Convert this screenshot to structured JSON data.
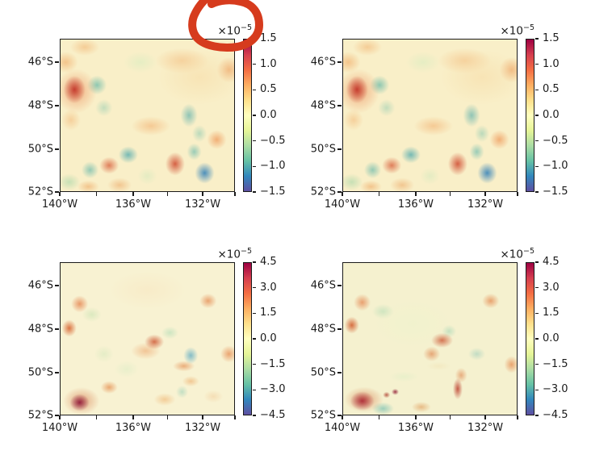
{
  "figure": {
    "background": "#ffffff",
    "text_color": "#1a1a1a"
  },
  "annotation": {
    "name": "red-circle-scribble",
    "description": "hand-drawn red circle around the top-left panel scale label",
    "color": "#d63b1d",
    "stroke_width": 10
  },
  "chart_data": {
    "type": "heatmap",
    "grid": "2x2",
    "colormap": "Spectral_r",
    "colormap_stops": [
      "#9e0142",
      "#d53e4f",
      "#f46d43",
      "#fdae61",
      "#fee08b",
      "#ffffbf",
      "#e6f598",
      "#abdda4",
      "#66c2a5",
      "#3288bd",
      "#5e4fa2"
    ],
    "x_axis": {
      "tick_labels": [
        "140°W",
        "136°W",
        "132°W"
      ],
      "tick_pos": [
        0,
        41.9,
        81.6
      ],
      "minor_tick_pos": [
        20.9,
        61.7,
        100
      ]
    },
    "y_axis": {
      "tick_labels": [
        "46°S",
        "48°S",
        "50°S",
        "52°S"
      ],
      "tick_pos": [
        15.3,
        43.7,
        72.1,
        100
      ]
    },
    "scale_label": {
      "mantissa": "×10",
      "exponent": "−5"
    },
    "panels": [
      {
        "id": "top-left",
        "colorbar": {
          "ticks": [
            "1.5",
            "1.0",
            "0.5",
            "0.0",
            "−0.5",
            "−1.0",
            "−1.5"
          ],
          "vmax": 1.5e-05,
          "vmin": -1.5e-05
        },
        "field": {
          "base": "#f9efc8",
          "blobs": [
            [
              80,
              25,
              34,
              26,
              "#f6dba6",
              0.55
            ],
            [
              8,
              33,
              9,
              13,
              "#c13227",
              0.9
            ],
            [
              9,
              34,
              17,
              21,
              "#e8703a",
              0.5
            ],
            [
              3,
              15,
              10,
              10,
              "#ee9a4e",
              0.5
            ],
            [
              14,
              5,
              12,
              8,
              "#efa258",
              0.45
            ],
            [
              21,
              30,
              8,
              9,
              "#55b2a4",
              0.65
            ],
            [
              25,
              45,
              7,
              8,
              "#8ecbb0",
              0.5
            ],
            [
              46,
              15,
              14,
              10,
              "#d9ecc0",
              0.6
            ],
            [
              70,
              14,
              22,
              12,
              "#f0a45c",
              0.4
            ],
            [
              97,
              20,
              10,
              12,
              "#ea8b44",
              0.55
            ],
            [
              74,
              50,
              7,
              11,
              "#49a8a8",
              0.6
            ],
            [
              80,
              62,
              6,
              8,
              "#7cc4ae",
              0.5
            ],
            [
              90,
              66,
              8,
              9,
              "#ec8540",
              0.6
            ],
            [
              52,
              57,
              16,
              9,
              "#f09c54",
              0.45
            ],
            [
              66,
              82,
              8,
              11,
              "#cc3e24",
              0.8
            ],
            [
              83,
              88,
              8,
              10,
              "#2f7fb8",
              0.85
            ],
            [
              77,
              74,
              6,
              8,
              "#5ab4ab",
              0.6
            ],
            [
              39,
              76,
              8,
              8,
              "#3fa3ab",
              0.7
            ],
            [
              28,
              83,
              8,
              8,
              "#d4502c",
              0.7
            ],
            [
              17,
              86,
              7,
              8,
              "#52b0a6",
              0.6
            ],
            [
              5,
              94,
              9,
              8,
              "#a6d6a8",
              0.6
            ],
            [
              16,
              97,
              9,
              6,
              "#eb9a50",
              0.5
            ],
            [
              34,
              96,
              10,
              7,
              "#e8944c",
              0.45
            ],
            [
              50,
              90,
              8,
              8,
              "#cfe8bc",
              0.5
            ],
            [
              6,
              53,
              8,
              10,
              "#f0a258",
              0.4
            ]
          ]
        }
      },
      {
        "id": "top-right",
        "colorbar": {
          "ticks": [
            "1.5",
            "1.0",
            "0.5",
            "0.0",
            "−0.5",
            "−1.0",
            "−1.5"
          ],
          "vmax": 1.5e-05,
          "vmin": -1.5e-05
        },
        "field": {
          "base": "#f9efc8",
          "blobs": [
            [
              80,
              25,
              34,
              26,
              "#f6dba6",
              0.55
            ],
            [
              8,
              33,
              9,
              13,
              "#c13227",
              0.9
            ],
            [
              9,
              34,
              17,
              21,
              "#e8703a",
              0.5
            ],
            [
              3,
              15,
              10,
              10,
              "#ee9a4e",
              0.5
            ],
            [
              14,
              5,
              12,
              8,
              "#efa258",
              0.45
            ],
            [
              21,
              30,
              8,
              9,
              "#55b2a4",
              0.65
            ],
            [
              25,
              45,
              7,
              8,
              "#8ecbb0",
              0.5
            ],
            [
              46,
              15,
              14,
              10,
              "#d9ecc0",
              0.6
            ],
            [
              70,
              14,
              22,
              12,
              "#f0a45c",
              0.4
            ],
            [
              97,
              20,
              10,
              12,
              "#ea8b44",
              0.55
            ],
            [
              74,
              50,
              7,
              11,
              "#49a8a8",
              0.6
            ],
            [
              80,
              62,
              6,
              8,
              "#7cc4ae",
              0.5
            ],
            [
              90,
              66,
              8,
              9,
              "#ec8540",
              0.6
            ],
            [
              52,
              57,
              16,
              9,
              "#f09c54",
              0.45
            ],
            [
              66,
              82,
              8,
              11,
              "#cc3e24",
              0.8
            ],
            [
              83,
              88,
              8,
              10,
              "#2f7fb8",
              0.85
            ],
            [
              77,
              74,
              6,
              8,
              "#5ab4ab",
              0.6
            ],
            [
              39,
              76,
              8,
              8,
              "#3fa3ab",
              0.7
            ],
            [
              28,
              83,
              8,
              8,
              "#d4502c",
              0.7
            ],
            [
              17,
              86,
              7,
              8,
              "#52b0a6",
              0.6
            ],
            [
              5,
              94,
              9,
              8,
              "#a6d6a8",
              0.6
            ],
            [
              16,
              97,
              9,
              6,
              "#eb9a50",
              0.5
            ],
            [
              34,
              96,
              10,
              7,
              "#e8944c",
              0.45
            ],
            [
              50,
              90,
              8,
              8,
              "#cfe8bc",
              0.5
            ],
            [
              6,
              53,
              8,
              10,
              "#f0a258",
              0.4
            ]
          ]
        }
      },
      {
        "id": "bottom-left",
        "colorbar": {
          "ticks": [
            "4.5",
            "3.0",
            "1.5",
            "0.0",
            "−1.5",
            "−3.0",
            "−4.5"
          ],
          "vmax": 4.5e-05,
          "vmin": -4.5e-05
        },
        "field": {
          "base": "#f8f2d2",
          "blobs": [
            [
              50,
              18,
              32,
              18,
              "#f8e6c0",
              0.55
            ],
            [
              11,
              27,
              7,
              8,
              "#e06a30",
              0.65
            ],
            [
              5,
              43,
              6,
              8,
              "#d4551f",
              0.8
            ],
            [
              85,
              25,
              7,
              7,
              "#e0702f",
              0.6
            ],
            [
              18,
              34,
              8,
              7,
              "#bfe0ac",
              0.5
            ],
            [
              54,
              52,
              8,
              7,
              "#c9441f",
              0.75
            ],
            [
              49,
              58,
              12,
              8,
              "#e8823d",
              0.4
            ],
            [
              63,
              46,
              7,
              6,
              "#aadbb4",
              0.55
            ],
            [
              75,
              61,
              6,
              8,
              "#46a0c0",
              0.65
            ],
            [
              97,
              60,
              7,
              8,
              "#e2712f",
              0.6
            ],
            [
              71,
              68,
              9,
              5,
              "#df7634",
              0.55
            ],
            [
              75,
              78,
              7,
              5,
              "#e89445",
              0.45
            ],
            [
              70,
              85,
              5,
              6,
              "#8fccb4",
              0.5
            ],
            [
              11,
              92,
              8,
              8,
              "#8e1538",
              0.9
            ],
            [
              12,
              91,
              15,
              13,
              "#cc5a28",
              0.5
            ],
            [
              28,
              82,
              7,
              6,
              "#e0762f",
              0.6
            ],
            [
              60,
              90,
              9,
              6,
              "#eca050",
              0.45
            ],
            [
              38,
              70,
              10,
              8,
              "#d9ecc4",
              0.5
            ],
            [
              25,
              60,
              8,
              8,
              "#cde6b8",
              0.45
            ],
            [
              88,
              88,
              8,
              6,
              "#efc089",
              0.4
            ]
          ]
        }
      },
      {
        "id": "bottom-right",
        "colorbar": {
          "ticks": [
            "4.5",
            "3.0",
            "1.5",
            "0.0",
            "−1.5",
            "−3.0",
            "−4.5"
          ],
          "vmax": 4.5e-05,
          "vmin": -4.5e-05
        },
        "field": {
          "base": "#f5f1cf",
          "blobs": [
            [
              40,
              40,
              32,
              22,
              "#eef3cc",
              0.6
            ],
            [
              11,
              26,
              7,
              8,
              "#e06a30",
              0.6
            ],
            [
              5,
              41,
              6,
              8,
              "#cf4f1e",
              0.8
            ],
            [
              85,
              25,
              7,
              7,
              "#e0702f",
              0.6
            ],
            [
              23,
              32,
              9,
              7,
              "#a8d8b0",
              0.5
            ],
            [
              57,
              51,
              9,
              7,
              "#c64320",
              0.7
            ],
            [
              51,
              60,
              7,
              7,
              "#d96a2e",
              0.55
            ],
            [
              61,
              45,
              6,
              6,
              "#9fd4b4",
              0.55
            ],
            [
              77,
              60,
              7,
              6,
              "#8fc8b8",
              0.5
            ],
            [
              97,
              67,
              6,
              8,
              "#e2712f",
              0.6
            ],
            [
              66,
              83,
              4,
              10,
              "#b52718",
              0.75
            ],
            [
              68,
              74,
              5,
              7,
              "#d96a2e",
              0.5
            ],
            [
              30,
              85,
              3,
              3,
              "#8e1530",
              0.85
            ],
            [
              25,
              87,
              3,
              3,
              "#a32417",
              0.7
            ],
            [
              11,
              91,
              10,
              9,
              "#a81f30",
              0.85
            ],
            [
              12,
              90,
              16,
              12,
              "#cc5a28",
              0.5
            ],
            [
              23,
              96,
              9,
              6,
              "#64b8ac",
              0.6
            ],
            [
              45,
              95,
              8,
              5,
              "#d9863c",
              0.5
            ],
            [
              35,
              75,
              12,
              5,
              "#dfeec6",
              0.55
            ],
            [
              55,
              68,
              10,
              4,
              "#f0e2b4",
              0.5
            ]
          ]
        }
      }
    ]
  }
}
